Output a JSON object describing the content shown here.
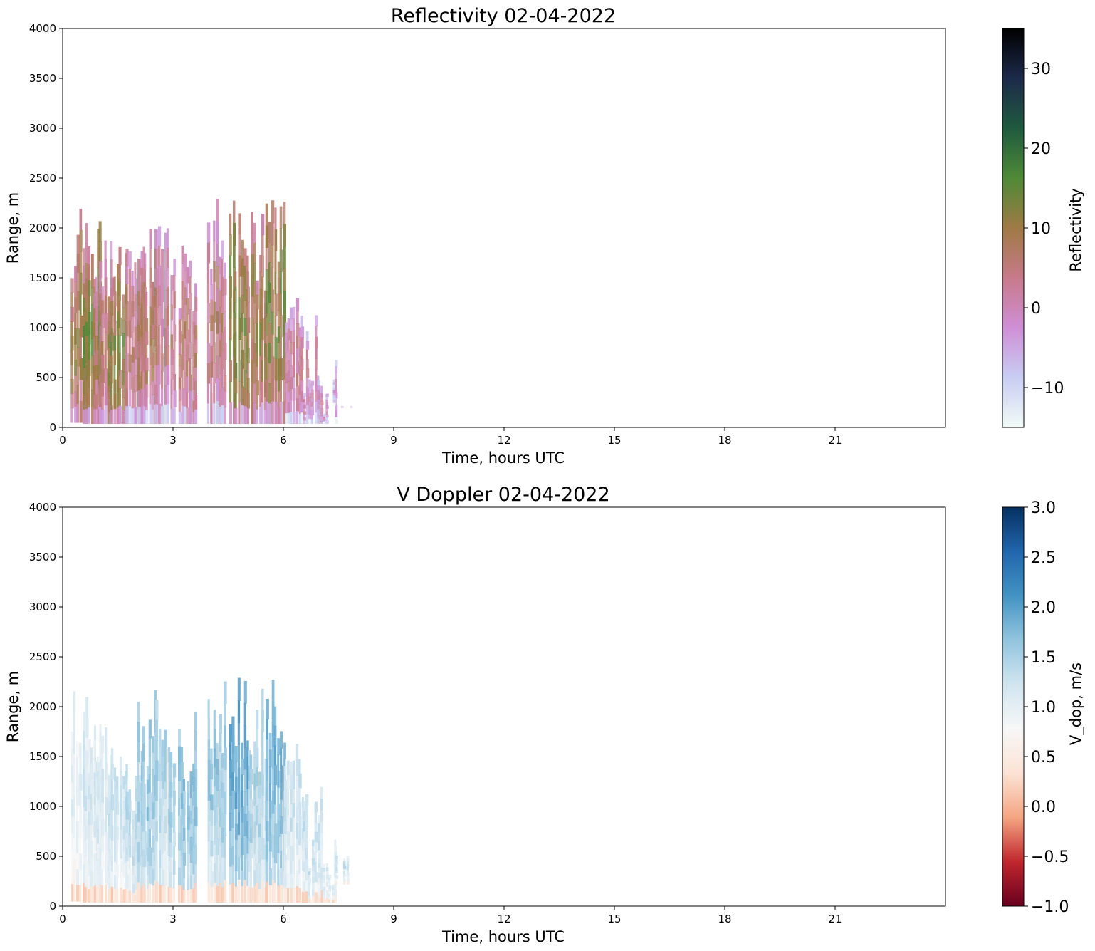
{
  "chart_data": [
    {
      "type": "heatmap",
      "title": "Reflectivity 02-04-2022",
      "xlabel": "Time, hours UTC",
      "ylabel": "Range, m",
      "xlim": [
        0,
        24
      ],
      "ylim": [
        0,
        4000
      ],
      "xticks": [
        0,
        3,
        6,
        9,
        12,
        15,
        18,
        21
      ],
      "yticks": [
        0,
        500,
        1000,
        1500,
        2000,
        2500,
        3000,
        3500,
        4000
      ],
      "colorbar": {
        "label": "Reflectivity",
        "range": [
          -15,
          35
        ],
        "ticks": [
          -10,
          0,
          10,
          20,
          30
        ],
        "tick_labels": [
          "−10",
          "0",
          "10",
          "20",
          "30"
        ],
        "colors": [
          "#f1fbf6",
          "#c8cdf2",
          "#cf8fd6",
          "#c77a8a",
          "#9f7a44",
          "#4f8a36",
          "#1f5a3f",
          "#1c2a4a",
          "#000000"
        ]
      },
      "echo_columns": [
        {
          "t": 0.5,
          "top": 2280,
          "bottom": 50,
          "z": 10
        },
        {
          "t": 0.8,
          "top": 2150,
          "bottom": 40,
          "z": 14
        },
        {
          "t": 1.1,
          "top": 1900,
          "bottom": 40,
          "z": 7
        },
        {
          "t": 1.5,
          "top": 1900,
          "bottom": 40,
          "z": 12
        },
        {
          "t": 2.0,
          "top": 1800,
          "bottom": 40,
          "z": 5
        },
        {
          "t": 2.3,
          "top": 2200,
          "bottom": 40,
          "z": 7
        },
        {
          "t": 2.8,
          "top": 2100,
          "bottom": 40,
          "z": 4
        },
        {
          "t": 3.4,
          "top": 2000,
          "bottom": 40,
          "z": 6
        },
        {
          "t": 4.2,
          "top": 2300,
          "bottom": 40,
          "z": 5
        },
        {
          "t": 4.8,
          "top": 2380,
          "bottom": 40,
          "z": 13
        },
        {
          "t": 5.3,
          "top": 2200,
          "bottom": 40,
          "z": 10
        },
        {
          "t": 5.8,
          "top": 2400,
          "bottom": 40,
          "z": 12
        },
        {
          "t": 6.3,
          "top": 1700,
          "bottom": 40,
          "z": 3
        },
        {
          "t": 6.8,
          "top": 1200,
          "bottom": 40,
          "z": 1
        },
        {
          "t": 7.2,
          "top": 700,
          "bottom": 40,
          "z": -2
        },
        {
          "t": 7.6,
          "top": 520,
          "bottom": 220,
          "z": -5
        }
      ]
    },
    {
      "type": "heatmap",
      "title": "V Doppler 02-04-2022",
      "xlabel": "Time, hours UTC",
      "ylabel": "Range, m",
      "xlim": [
        0,
        24
      ],
      "ylim": [
        0,
        4000
      ],
      "xticks": [
        0,
        3,
        6,
        9,
        12,
        15,
        18,
        21
      ],
      "yticks": [
        0,
        500,
        1000,
        1500,
        2000,
        2500,
        3000,
        3500,
        4000
      ],
      "colorbar": {
        "label": "V_dop, m/s",
        "range": [
          -1.0,
          3.0
        ],
        "ticks": [
          -1.0,
          -0.5,
          0.0,
          0.5,
          1.0,
          1.5,
          2.0,
          2.5,
          3.0
        ],
        "tick_labels": [
          "−1.0",
          "−0.5",
          "0.0",
          "0.5",
          "1.0",
          "1.5",
          "2.0",
          "2.5",
          "3.0"
        ],
        "colors": [
          "#67001f",
          "#c0272d",
          "#f4a582",
          "#fbe3d4",
          "#f7f7f7",
          "#d1e5f0",
          "#92c5de",
          "#4393c3",
          "#2166ac",
          "#053061"
        ]
      },
      "echo_columns": [
        {
          "t": 0.5,
          "top": 2280,
          "bottom": 50,
          "v": 0.8
        },
        {
          "t": 0.8,
          "top": 2150,
          "bottom": 40,
          "v": 1.0
        },
        {
          "t": 1.1,
          "top": 1900,
          "bottom": 40,
          "v": 0.9
        },
        {
          "t": 1.5,
          "top": 1900,
          "bottom": 40,
          "v": 1.0
        },
        {
          "t": 2.0,
          "top": 1800,
          "bottom": 40,
          "v": 1.1
        },
        {
          "t": 2.3,
          "top": 2200,
          "bottom": 40,
          "v": 1.3
        },
        {
          "t": 2.8,
          "top": 2100,
          "bottom": 40,
          "v": 1.2
        },
        {
          "t": 3.4,
          "top": 2000,
          "bottom": 40,
          "v": 1.4
        },
        {
          "t": 4.2,
          "top": 2300,
          "bottom": 40,
          "v": 1.3
        },
        {
          "t": 4.8,
          "top": 2380,
          "bottom": 40,
          "v": 1.6
        },
        {
          "t": 5.3,
          "top": 2200,
          "bottom": 40,
          "v": 1.2
        },
        {
          "t": 5.8,
          "top": 2400,
          "bottom": 40,
          "v": 1.5
        },
        {
          "t": 6.3,
          "top": 1700,
          "bottom": 40,
          "v": 1.0
        },
        {
          "t": 6.8,
          "top": 1200,
          "bottom": 40,
          "v": 1.0
        },
        {
          "t": 7.2,
          "top": 700,
          "bottom": 40,
          "v": 0.9
        },
        {
          "t": 7.6,
          "top": 520,
          "bottom": 220,
          "v": 1.0
        }
      ]
    }
  ]
}
